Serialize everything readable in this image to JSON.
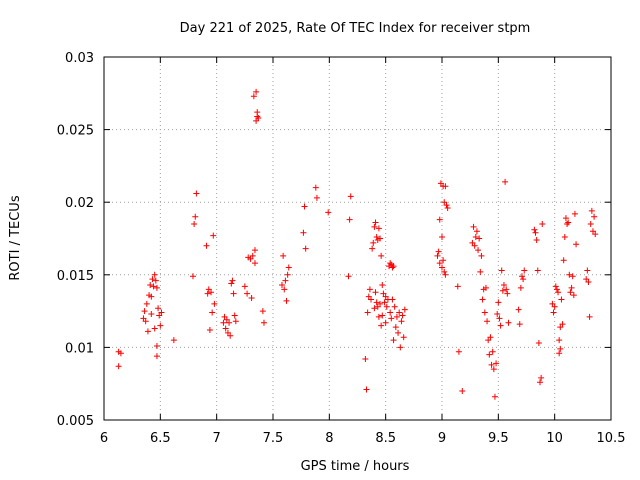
{
  "chart_data": {
    "type": "scatter",
    "title": "Day 221 of 2025, Rate Of TEC Index for receiver stpm",
    "xlabel": "GPS time / hours",
    "ylabel": "ROTI / TECUs",
    "xlim": [
      6,
      10.5
    ],
    "ylim": [
      0.005,
      0.03
    ],
    "xticks": [
      6,
      6.5,
      7,
      7.5,
      8,
      8.5,
      9,
      9.5,
      10,
      10.5
    ],
    "xtick_labels": [
      "6",
      "6.5",
      "7",
      "7.5",
      "8",
      "8.5",
      "9",
      "9.5",
      "10",
      "10.5"
    ],
    "yticks": [
      0.005,
      0.01,
      0.015,
      0.02,
      0.025,
      0.03
    ],
    "ytick_labels": [
      "0.005",
      "0.01",
      "0.015",
      "0.02",
      "0.025",
      "0.03"
    ],
    "grid": true,
    "marker": "+",
    "color": "#ff0000",
    "series": [
      {
        "name": "ROTI",
        "points": [
          [
            6.13,
            0.0087
          ],
          [
            6.13,
            0.0097
          ],
          [
            6.15,
            0.0096
          ],
          [
            6.35,
            0.012
          ],
          [
            6.36,
            0.0125
          ],
          [
            6.37,
            0.0118
          ],
          [
            6.38,
            0.013
          ],
          [
            6.39,
            0.0111
          ],
          [
            6.4,
            0.0136
          ],
          [
            6.41,
            0.0143
          ],
          [
            6.42,
            0.0135
          ],
          [
            6.42,
            0.0123
          ],
          [
            6.43,
            0.0147
          ],
          [
            6.44,
            0.0142
          ],
          [
            6.45,
            0.015
          ],
          [
            6.45,
            0.0113
          ],
          [
            6.46,
            0.0146
          ],
          [
            6.47,
            0.0141
          ],
          [
            6.47,
            0.0101
          ],
          [
            6.47,
            0.0094
          ],
          [
            6.48,
            0.0127
          ],
          [
            6.49,
            0.0122
          ],
          [
            6.5,
            0.0115
          ],
          [
            6.51,
            0.0124
          ],
          [
            6.62,
            0.0105
          ],
          [
            6.79,
            0.0149
          ],
          [
            6.8,
            0.0185
          ],
          [
            6.81,
            0.019
          ],
          [
            6.82,
            0.0206
          ],
          [
            6.91,
            0.017
          ],
          [
            6.92,
            0.0137
          ],
          [
            6.93,
            0.014
          ],
          [
            6.94,
            0.0112
          ],
          [
            6.95,
            0.0138
          ],
          [
            6.96,
            0.0124
          ],
          [
            6.97,
            0.0177
          ],
          [
            6.98,
            0.013
          ],
          [
            7.06,
            0.0117
          ],
          [
            7.07,
            0.0121
          ],
          [
            7.08,
            0.0113
          ],
          [
            7.09,
            0.0119
          ],
          [
            7.1,
            0.011
          ],
          [
            7.11,
            0.0117
          ],
          [
            7.12,
            0.0108
          ],
          [
            7.13,
            0.0144
          ],
          [
            7.14,
            0.0146
          ],
          [
            7.15,
            0.0137
          ],
          [
            7.16,
            0.0122
          ],
          [
            7.17,
            0.0118
          ],
          [
            7.25,
            0.0142
          ],
          [
            7.27,
            0.0137
          ],
          [
            7.28,
            0.0162
          ],
          [
            7.3,
            0.0161
          ],
          [
            7.31,
            0.0134
          ],
          [
            7.32,
            0.0163
          ],
          [
            7.33,
            0.0273
          ],
          [
            7.34,
            0.0158
          ],
          [
            7.34,
            0.0167
          ],
          [
            7.35,
            0.0276
          ],
          [
            7.35,
            0.0256
          ],
          [
            7.36,
            0.0259
          ],
          [
            7.36,
            0.0262
          ],
          [
            7.37,
            0.0258
          ],
          [
            7.41,
            0.0125
          ],
          [
            7.42,
            0.0117
          ],
          [
            7.58,
            0.0143
          ],
          [
            7.59,
            0.0163
          ],
          [
            7.6,
            0.014
          ],
          [
            7.61,
            0.0146
          ],
          [
            7.62,
            0.0132
          ],
          [
            7.63,
            0.015
          ],
          [
            7.64,
            0.0155
          ],
          [
            7.77,
            0.0179
          ],
          [
            7.78,
            0.0197
          ],
          [
            7.79,
            0.0168
          ],
          [
            7.88,
            0.021
          ],
          [
            7.89,
            0.0203
          ],
          [
            7.99,
            0.0193
          ],
          [
            8.17,
            0.0149
          ],
          [
            8.18,
            0.0188
          ],
          [
            8.19,
            0.0204
          ],
          [
            8.32,
            0.0092
          ],
          [
            8.33,
            0.0071
          ],
          [
            8.34,
            0.0124
          ],
          [
            8.35,
            0.0135
          ],
          [
            8.36,
            0.014
          ],
          [
            8.37,
            0.0133
          ],
          [
            8.38,
            0.0168
          ],
          [
            8.39,
            0.0172
          ],
          [
            8.4,
            0.0183
          ],
          [
            8.4,
            0.0127
          ],
          [
            8.41,
            0.0186
          ],
          [
            8.41,
            0.0138
          ],
          [
            8.42,
            0.0176
          ],
          [
            8.42,
            0.0131
          ],
          [
            8.43,
            0.0174
          ],
          [
            8.43,
            0.0128
          ],
          [
            8.44,
            0.0182
          ],
          [
            8.44,
            0.0121
          ],
          [
            8.45,
            0.0175
          ],
          [
            8.45,
            0.013
          ],
          [
            8.46,
            0.0163
          ],
          [
            8.46,
            0.0115
          ],
          [
            8.47,
            0.0143
          ],
          [
            8.47,
            0.0122
          ],
          [
            8.48,
            0.0137
          ],
          [
            8.49,
            0.0131
          ],
          [
            8.5,
            0.0135
          ],
          [
            8.5,
            0.0117
          ],
          [
            8.51,
            0.0128
          ],
          [
            8.52,
            0.0133
          ],
          [
            8.53,
            0.0156
          ],
          [
            8.54,
            0.0158
          ],
          [
            8.54,
            0.0124
          ],
          [
            8.55,
            0.0157
          ],
          [
            8.55,
            0.012
          ],
          [
            8.56,
            0.0155
          ],
          [
            8.56,
            0.0133
          ],
          [
            8.57,
            0.0156
          ],
          [
            8.57,
            0.0105
          ],
          [
            8.58,
            0.0128
          ],
          [
            8.59,
            0.0114
          ],
          [
            8.6,
            0.0121
          ],
          [
            8.61,
            0.011
          ],
          [
            8.62,
            0.0124
          ],
          [
            8.63,
            0.01
          ],
          [
            8.64,
            0.0118
          ],
          [
            8.65,
            0.0122
          ],
          [
            8.66,
            0.0107
          ],
          [
            8.67,
            0.0126
          ],
          [
            8.96,
            0.0163
          ],
          [
            8.97,
            0.0166
          ],
          [
            8.98,
            0.0188
          ],
          [
            8.98,
            0.0158
          ],
          [
            8.99,
            0.0213
          ],
          [
            9.0,
            0.0176
          ],
          [
            9.0,
            0.0155
          ],
          [
            9.01,
            0.0211
          ],
          [
            9.01,
            0.016
          ],
          [
            9.02,
            0.02
          ],
          [
            9.02,
            0.0152
          ],
          [
            9.03,
            0.0211
          ],
          [
            9.03,
            0.015
          ],
          [
            9.04,
            0.0198
          ],
          [
            9.05,
            0.0196
          ],
          [
            9.14,
            0.0142
          ],
          [
            9.15,
            0.0097
          ],
          [
            9.18,
            0.007
          ],
          [
            9.27,
            0.0172
          ],
          [
            9.28,
            0.0183
          ],
          [
            9.29,
            0.017
          ],
          [
            9.3,
            0.0176
          ],
          [
            9.31,
            0.018
          ],
          [
            9.32,
            0.0167
          ],
          [
            9.33,
            0.0175
          ],
          [
            9.34,
            0.0152
          ],
          [
            9.35,
            0.0163
          ],
          [
            9.36,
            0.0133
          ],
          [
            9.37,
            0.014
          ],
          [
            9.38,
            0.0124
          ],
          [
            9.39,
            0.0141
          ],
          [
            9.4,
            0.0118
          ],
          [
            9.41,
            0.0105
          ],
          [
            9.42,
            0.0095
          ],
          [
            9.43,
            0.0107
          ],
          [
            9.44,
            0.0088
          ],
          [
            9.45,
            0.0097
          ],
          [
            9.46,
            0.0085
          ],
          [
            9.47,
            0.0066
          ],
          [
            9.48,
            0.0089
          ],
          [
            9.49,
            0.0123
          ],
          [
            9.5,
            0.0131
          ],
          [
            9.51,
            0.012
          ],
          [
            9.52,
            0.0115
          ],
          [
            9.53,
            0.0153
          ],
          [
            9.54,
            0.0139
          ],
          [
            9.55,
            0.0143
          ],
          [
            9.56,
            0.0214
          ],
          [
            9.57,
            0.014
          ],
          [
            9.58,
            0.0137
          ],
          [
            9.59,
            0.0117
          ],
          [
            9.68,
            0.0126
          ],
          [
            9.69,
            0.0116
          ],
          [
            9.7,
            0.0141
          ],
          [
            9.71,
            0.0149
          ],
          [
            9.72,
            0.0147
          ],
          [
            9.73,
            0.0153
          ],
          [
            9.82,
            0.0181
          ],
          [
            9.83,
            0.0179
          ],
          [
            9.84,
            0.0174
          ],
          [
            9.85,
            0.0153
          ],
          [
            9.86,
            0.0103
          ],
          [
            9.87,
            0.0076
          ],
          [
            9.88,
            0.0079
          ],
          [
            9.89,
            0.0185
          ],
          [
            9.98,
            0.013
          ],
          [
            9.99,
            0.0124
          ],
          [
            10.0,
            0.0128
          ],
          [
            10.01,
            0.0142
          ],
          [
            10.02,
            0.014
          ],
          [
            10.03,
            0.0138
          ],
          [
            10.04,
            0.0096
          ],
          [
            10.04,
            0.0105
          ],
          [
            10.05,
            0.0114
          ],
          [
            10.05,
            0.0099
          ],
          [
            10.06,
            0.0133
          ],
          [
            10.07,
            0.0116
          ],
          [
            10.08,
            0.016
          ],
          [
            10.09,
            0.0176
          ],
          [
            10.1,
            0.0189
          ],
          [
            10.11,
            0.0185
          ],
          [
            10.12,
            0.0186
          ],
          [
            10.13,
            0.015
          ],
          [
            10.14,
            0.0138
          ],
          [
            10.15,
            0.0141
          ],
          [
            10.16,
            0.0149
          ],
          [
            10.17,
            0.0136
          ],
          [
            10.18,
            0.0192
          ],
          [
            10.19,
            0.0171
          ],
          [
            10.28,
            0.0147
          ],
          [
            10.29,
            0.0153
          ],
          [
            10.3,
            0.0145
          ],
          [
            10.31,
            0.0121
          ],
          [
            10.32,
            0.0185
          ],
          [
            10.33,
            0.0194
          ],
          [
            10.34,
            0.018
          ],
          [
            10.35,
            0.019
          ],
          [
            10.36,
            0.0178
          ]
        ]
      }
    ]
  }
}
